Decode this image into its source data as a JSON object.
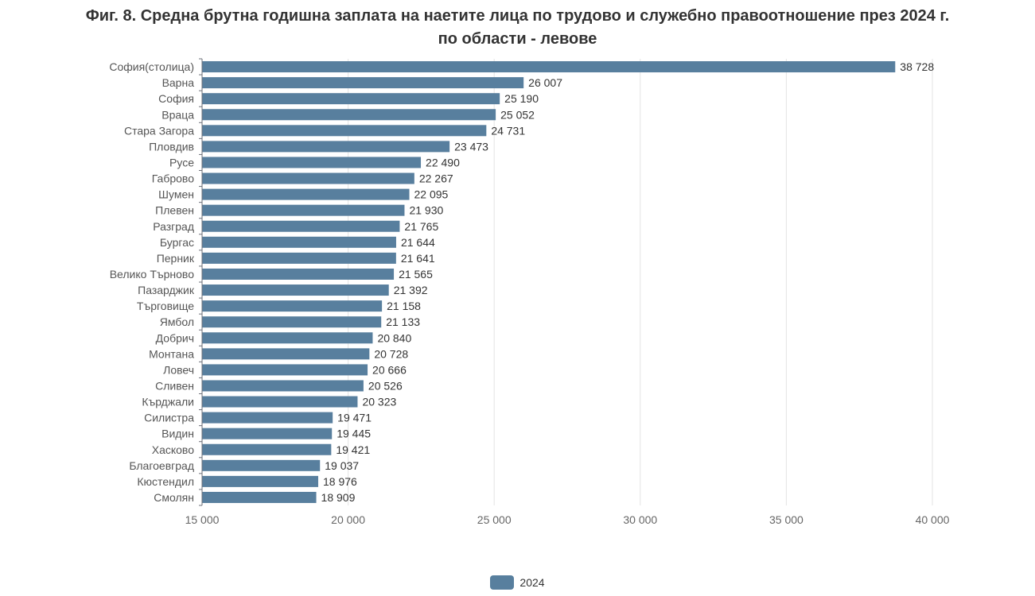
{
  "chart_data": {
    "type": "bar",
    "orientation": "horizontal",
    "title_line1": "Фиг. 8. Средна брутна годишна заплата на наетите лица по трудово и служебно правоотношение през 2024 г.",
    "title_line2": "по области - левове",
    "categories": [
      "София(столица)",
      "Варна",
      "София",
      "Враца",
      "Стара Загора",
      "Пловдив",
      "Русе",
      "Габрово",
      "Шумен",
      "Плевен",
      "Разград",
      "Бургас",
      "Перник",
      "Велико Търново",
      "Пазарджик",
      "Търговище",
      "Ямбол",
      "Добрич",
      "Монтана",
      "Ловеч",
      "Сливен",
      "Кърджали",
      "Силистра",
      "Видин",
      "Хасково",
      "Благоевград",
      "Кюстендил",
      "Смолян"
    ],
    "series": [
      {
        "name": "2024",
        "color": "#587f9e",
        "values": [
          38728,
          26007,
          25190,
          25052,
          24731,
          23473,
          22490,
          22267,
          22095,
          21930,
          21765,
          21644,
          21641,
          21565,
          21392,
          21158,
          21133,
          20840,
          20728,
          20666,
          20526,
          20323,
          19471,
          19445,
          19421,
          19037,
          18976,
          18909
        ],
        "value_labels": [
          "38 728",
          "26 007",
          "25 190",
          "25 052",
          "24 731",
          "23 473",
          "22 490",
          "22 267",
          "22 095",
          "21 930",
          "21 765",
          "21 644",
          "21 641",
          "21 565",
          "21 392",
          "21 158",
          "21 133",
          "20 840",
          "20 728",
          "20 666",
          "20 526",
          "20 323",
          "19 471",
          "19 445",
          "19 421",
          "19 037",
          "18 976",
          "18 909"
        ]
      }
    ],
    "xlim": [
      15000,
      40000
    ],
    "xticks": [
      15000,
      20000,
      25000,
      30000,
      35000,
      40000
    ],
    "xtick_labels": [
      "15 000",
      "20 000",
      "25 000",
      "30 000",
      "35 000",
      "40 000"
    ],
    "grid": true,
    "legend_position": "bottom-center"
  },
  "legend": {
    "label": "2024",
    "color": "#587f9e"
  }
}
